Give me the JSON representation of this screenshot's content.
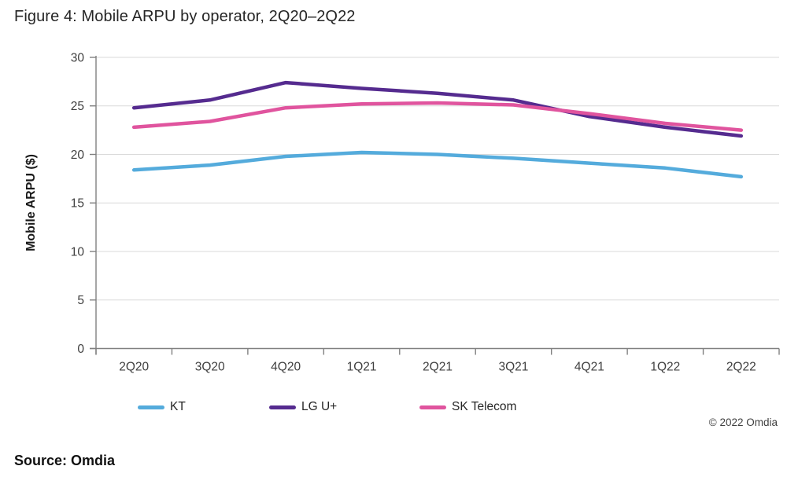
{
  "figure": {
    "title": "Figure 4: Mobile ARPU by operator, 2Q20–2Q22",
    "source": "Source: Omdia",
    "copyright": "© 2022 Omdia"
  },
  "chart_data": {
    "type": "line",
    "title": "Figure 4: Mobile ARPU by operator, 2Q20–2Q22",
    "xlabel": "",
    "ylabel": "Mobile ARPU ($)",
    "categories": [
      "2Q20",
      "3Q20",
      "4Q20",
      "1Q21",
      "2Q21",
      "3Q21",
      "4Q21",
      "1Q22",
      "2Q22"
    ],
    "series": [
      {
        "name": "KT",
        "color": "#54ABDC",
        "values": [
          18.4,
          18.9,
          19.8,
          20.2,
          20.0,
          19.6,
          19.1,
          18.6,
          17.7
        ]
      },
      {
        "name": "LG U+",
        "color": "#552B8F",
        "values": [
          24.8,
          25.6,
          27.4,
          26.8,
          26.3,
          25.6,
          23.9,
          22.8,
          21.9
        ]
      },
      {
        "name": "SK Telecom",
        "color": "#E0549E",
        "values": [
          22.8,
          23.4,
          24.8,
          25.2,
          25.3,
          25.1,
          24.2,
          23.2,
          22.5
        ]
      }
    ],
    "yticks": [
      0,
      5,
      10,
      15,
      20,
      25,
      30
    ],
    "ylim": [
      0,
      30
    ],
    "grid": "horizontal",
    "gridline_color": "#DADADA",
    "axis_color": "#808080",
    "legend_position": "bottom"
  }
}
